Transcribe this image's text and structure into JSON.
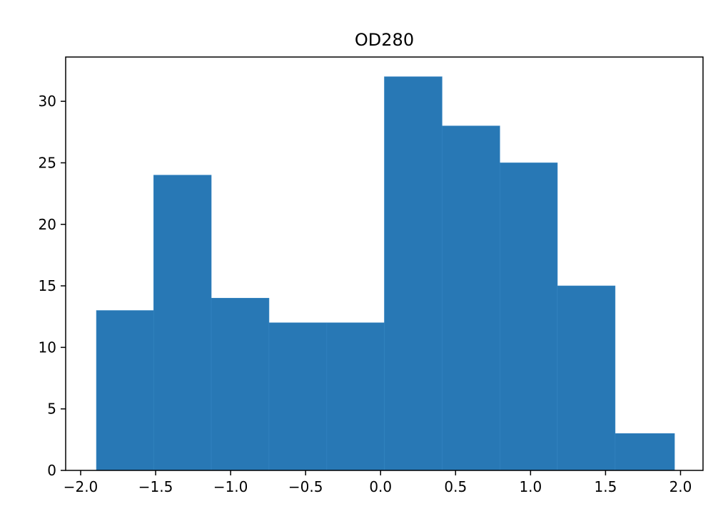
{
  "chart_data": {
    "type": "bar",
    "title": "OD280",
    "xlabel": "",
    "ylabel": "",
    "bins": [
      {
        "x0": -1.895,
        "x1": -1.513,
        "count": 13
      },
      {
        "x0": -1.513,
        "x1": -1.129,
        "count": 24
      },
      {
        "x0": -1.129,
        "x1": -0.744,
        "count": 14
      },
      {
        "x0": -0.744,
        "x1": -0.359,
        "count": 12
      },
      {
        "x0": -0.359,
        "x1": 0.025,
        "count": 12
      },
      {
        "x0": 0.025,
        "x1": 0.41,
        "count": 32
      },
      {
        "x0": 0.41,
        "x1": 0.795,
        "count": 28
      },
      {
        "x0": 0.795,
        "x1": 1.179,
        "count": 25
      },
      {
        "x0": 1.179,
        "x1": 1.564,
        "count": 15
      },
      {
        "x0": 1.564,
        "x1": 1.96,
        "count": 3
      }
    ],
    "xlim": [
      -2.1,
      2.15
    ],
    "ylim": [
      0,
      33.6
    ],
    "xticks": [
      -2.0,
      -1.5,
      -1.0,
      -0.5,
      0.0,
      0.5,
      1.0,
      1.5,
      2.0
    ],
    "xtick_labels": [
      "−2.0",
      "−1.5",
      "−1.0",
      "−0.5",
      "0.0",
      "0.5",
      "1.0",
      "1.5",
      "2.0"
    ],
    "yticks": [
      0,
      5,
      10,
      15,
      20,
      25,
      30
    ],
    "ytick_labels": [
      "0",
      "5",
      "10",
      "15",
      "20",
      "25",
      "30"
    ],
    "grid": false,
    "colors": {
      "bar": "#2878b5",
      "axis": "#000000"
    }
  }
}
